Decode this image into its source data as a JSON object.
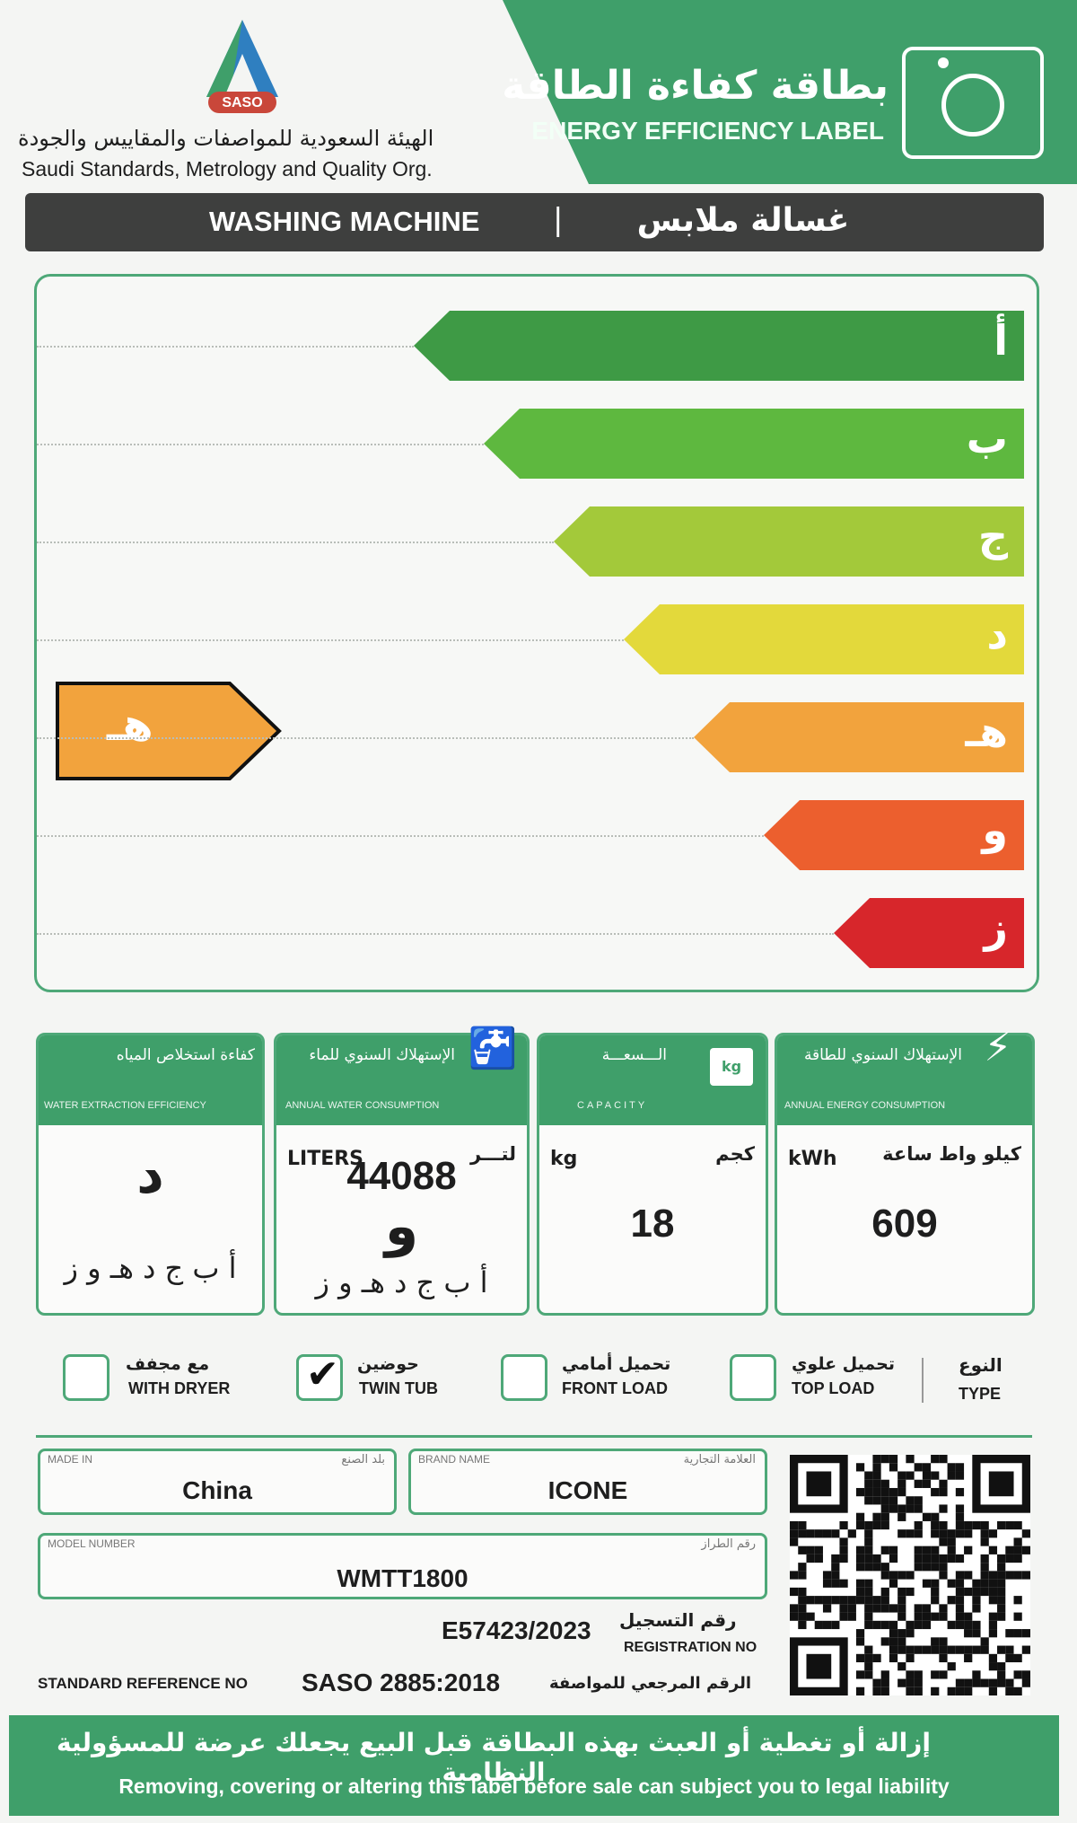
{
  "header": {
    "logo_text": "SASO",
    "org_ar": "الهيئة السعودية للمواصفات والمقاييس والجودة",
    "org_en": "Saudi Standards, Metrology and Quality Org.",
    "title_ar": "بطاقة كفاءة الطاقة",
    "title_en": "ENERGY EFFICIENCY LABEL",
    "icon": "washing-machine-icon"
  },
  "product": {
    "type_en": "WASHING MACHINE",
    "separator": "|",
    "type_ar": "غسالة ملابس"
  },
  "rating_scale": {
    "grades": [
      "أ",
      "ب",
      "ج",
      "د",
      "هـ",
      "و",
      "ز"
    ],
    "colors": [
      "#3e9a45",
      "#5eb83f",
      "#a3c93a",
      "#e3d93b",
      "#f2a33d",
      "#ec5f2e",
      "#d7262b"
    ],
    "selected_grade": "هـ",
    "selected_index": 4,
    "selected_color": "#f2a33d"
  },
  "boxes": {
    "water_extraction": {
      "title_ar": "كفاءة استخلاص المياه",
      "title_en": "WATER EXTRACTION EFFICIENCY",
      "grade": "د",
      "scale": "أ ب ج د هـ و ز"
    },
    "water": {
      "title_ar": "الإستهلاك السنوي للماء",
      "title_en": "ANNUAL WATER CONSUMPTION",
      "unit_en": "LITERS",
      "unit_ar": "لتـــر",
      "value": "44088",
      "grade": "و",
      "scale": "أ ب ج د هـ و ز"
    },
    "capacity": {
      "title_ar": "الـــسعـــة",
      "title_en": "CAPACITY",
      "icon_text": "kg",
      "unit_en": "kg",
      "unit_ar": "كجم",
      "value": "18"
    },
    "energy": {
      "title_ar": "الإستهلاك السنوي للطاقة",
      "title_en": "ANNUAL ENERGY CONSUMPTION",
      "unit_en": "kWh",
      "unit_ar": "كيلو واط ساعة",
      "value": "609"
    }
  },
  "type_options": {
    "with_dryer": {
      "ar": "مع مجفف",
      "en": "WITH DRYER",
      "checked": false
    },
    "twin_tub": {
      "ar": "حوضين",
      "en": "TWIN TUB",
      "checked": true
    },
    "front_load": {
      "ar": "تحميل أمامي",
      "en": "FRONT LOAD",
      "checked": false
    },
    "top_load": {
      "ar": "تحميل علوي",
      "en": "TOP LOAD",
      "checked": false
    },
    "type_label_ar": "النوع",
    "type_label_en": "TYPE",
    "check_mark": "✔"
  },
  "details": {
    "made_in_label_en": "MADE IN",
    "made_in_label_ar": "بلد الصنع",
    "made_in": "China",
    "brand_label_en": "BRAND NAME",
    "brand_label_ar": "العلامة التجارية",
    "brand": "ICONE",
    "model_label_en": "MODEL NUMBER",
    "model_label_ar": "رقم الطراز",
    "model": "WMTT1800",
    "registration_no": "E57423/2023",
    "registration_label_ar": "رقم التسجيل",
    "registration_label_en": "REGISTRATION NO",
    "standard_label_en": "STANDARD REFERENCE NO",
    "standard": "SASO 2885:2018",
    "standard_label_ar": "الرقم المرجعي للمواصفة"
  },
  "footer": {
    "warning_ar": "إزالة أو تغطية أو العبث بهذه البطاقة قبل البيع يجعلك عرضة للمسؤولية النظامية",
    "warning_en": "Removing, covering or altering this label before sale can subject you to legal liability"
  }
}
